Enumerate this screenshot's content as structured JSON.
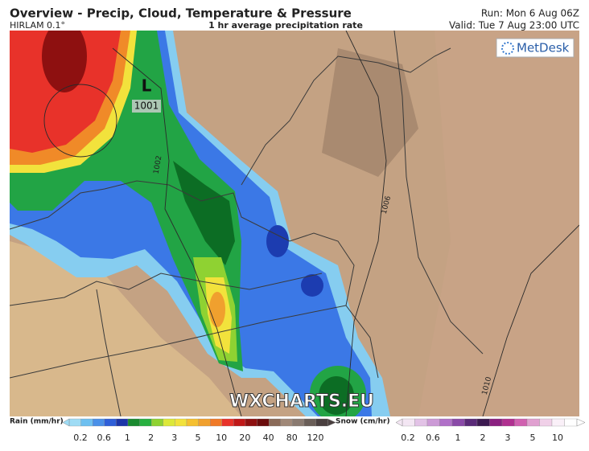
{
  "header": {
    "title": "Overview - Precip, Cloud, Temperature & Pressure",
    "model": "HIRLAM 0.1°",
    "subtitle": "1 hr average precipitation rate",
    "run": "Run: Mon 6 Aug 06Z",
    "valid": "Valid: Tue 7 Aug 23:00 UTC"
  },
  "logo": "MetDesk",
  "map": {
    "low_symbol": "L",
    "low_pressure": 1001,
    "isobars": [
      1002,
      1006,
      1010
    ],
    "watermark": "WXCHARTS.EU"
  },
  "legend": {
    "rain": {
      "label": "Rain (mm/hr)",
      "ticks": [
        0.2,
        0.6,
        1,
        2,
        3,
        5,
        10,
        20,
        40,
        80,
        120
      ]
    },
    "snow": {
      "label": "Snow (cm/hr)",
      "ticks": [
        0.2,
        0.6,
        1,
        2,
        3,
        5,
        10
      ]
    }
  }
}
